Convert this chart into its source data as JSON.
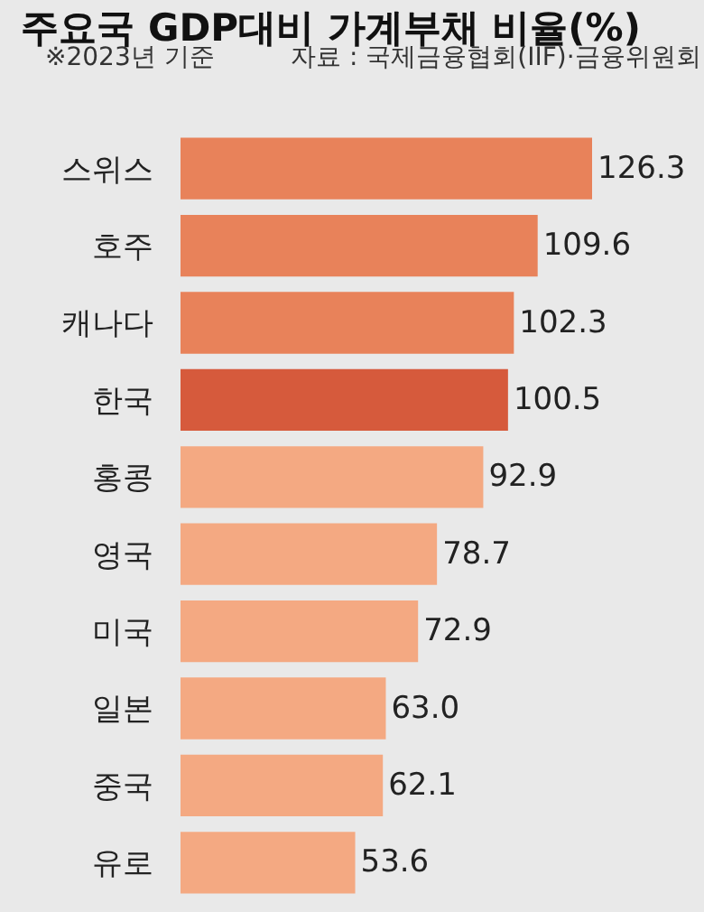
{
  "chart_data": {
    "type": "bar",
    "orientation": "horizontal",
    "title": "주요국 GDP대비 가계부채 비율(%)",
    "subtitle": "※2023년 기준",
    "annotations": [
      "자료 : 국제금융협회(IIF)·금융위원회"
    ],
    "categories": [
      "스위스",
      "호주",
      "캐나다",
      "한국",
      "홍콩",
      "영국",
      "미국",
      "일본",
      "중국",
      "유로"
    ],
    "values": [
      126.3,
      109.6,
      102.3,
      100.5,
      92.9,
      78.7,
      72.9,
      63.0,
      62.1,
      53.6
    ],
    "value_labels": [
      "126.3",
      "109.6",
      "102.3",
      "100.5",
      "92.9",
      "78.7",
      "72.9",
      "63.0",
      "62.1",
      "53.6"
    ],
    "colors": [
      "#e8825a",
      "#e8825a",
      "#e8825a",
      "#d65a3c",
      "#f4a982",
      "#f4a982",
      "#f4a982",
      "#f4a982",
      "#f4a982",
      "#f4a982"
    ],
    "grid": false,
    "legend": false
  }
}
